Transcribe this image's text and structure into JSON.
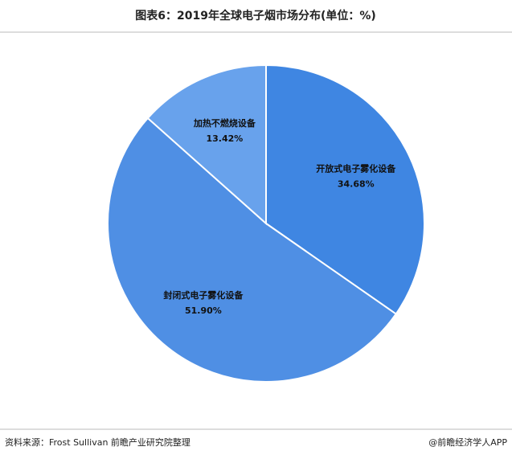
{
  "chart_data": {
    "type": "pie",
    "title": "图表6：2019年全球电子烟市场分布(单位：%)",
    "categories": [
      "开放式电子雾化设备",
      "封闭式电子雾化设备",
      "加热不燃烧设备"
    ],
    "values": [
      34.68,
      51.9,
      13.42
    ],
    "value_labels": [
      "34.68%",
      "51.90%",
      "13.42%"
    ],
    "colors": [
      "#3f86e2",
      "#4f8fe4",
      "#68a2ec"
    ],
    "source": "资料来源：Frost Sullivan 前瞻产业研究院整理",
    "credit": "@前瞻经济学人APP"
  }
}
